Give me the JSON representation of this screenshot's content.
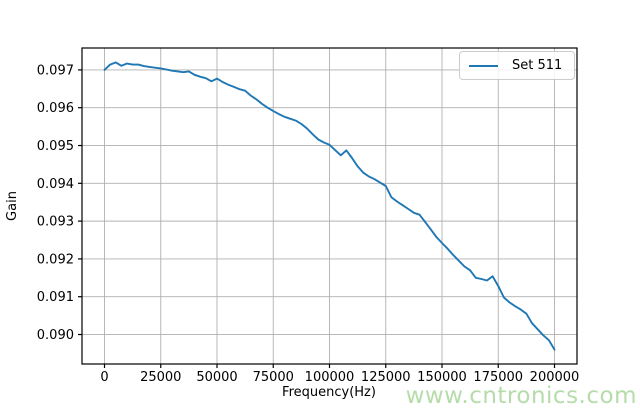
{
  "figure": {
    "background": "#ffffff",
    "watermark": {
      "text": "www.cntronics.com",
      "color": "#b5dcaa"
    }
  },
  "chart_data": {
    "type": "line",
    "title": "",
    "xlabel": "Frequency(Hz)",
    "ylabel": "Gain",
    "grid": true,
    "grid_color": "#b0b0b0",
    "axis_color": "#000000",
    "xlim": [
      -10000,
      210000
    ],
    "ylim": [
      0.08922,
      0.09758
    ],
    "legend_position": "upper right",
    "xticks": {
      "values": [
        0,
        25000,
        50000,
        75000,
        100000,
        125000,
        150000,
        175000,
        200000
      ],
      "labels": [
        "0",
        "25000",
        "50000",
        "75000",
        "100000",
        "125000",
        "150000",
        "175000",
        "200000"
      ]
    },
    "yticks": {
      "values": [
        0.09,
        0.091,
        0.092,
        0.093,
        0.094,
        0.095,
        0.096,
        0.097
      ],
      "labels": [
        "0.090",
        "0.091",
        "0.092",
        "0.093",
        "0.094",
        "0.095",
        "0.096",
        "0.097"
      ]
    },
    "x": [
      0,
      2500,
      5000,
      7500,
      10000,
      12500,
      15000,
      17500,
      20000,
      22500,
      25000,
      27500,
      30000,
      32500,
      35000,
      37500,
      40000,
      42500,
      45000,
      47500,
      50000,
      52500,
      55000,
      57500,
      60000,
      62500,
      65000,
      67500,
      70000,
      72500,
      75000,
      77500,
      80000,
      82500,
      85000,
      87500,
      90000,
      92500,
      95000,
      97500,
      100000,
      102500,
      105000,
      107500,
      110000,
      112500,
      115000,
      117500,
      120000,
      122500,
      125000,
      127500,
      130000,
      132500,
      135000,
      137500,
      140000,
      142500,
      145000,
      147500,
      150000,
      152500,
      155000,
      157500,
      160000,
      162500,
      165000,
      167500,
      170000,
      172500,
      175000,
      177500,
      180000,
      182500,
      185000,
      187500,
      190000,
      192500,
      195000,
      197500,
      200000
    ],
    "series": [
      {
        "name": "Set 511",
        "color": "#1f77b4",
        "values": [
          0.097,
          0.09714,
          0.0972,
          0.09711,
          0.09717,
          0.09714,
          0.09714,
          0.0971,
          0.09708,
          0.09706,
          0.09704,
          0.09701,
          0.09698,
          0.09696,
          0.09694,
          0.09696,
          0.09687,
          0.09682,
          0.09678,
          0.0967,
          0.09677,
          0.09668,
          0.09661,
          0.09655,
          0.09649,
          0.09645,
          0.09632,
          0.09622,
          0.0961,
          0.096,
          0.09591,
          0.09583,
          0.09576,
          0.09571,
          0.09566,
          0.09557,
          0.09545,
          0.0953,
          0.09516,
          0.09508,
          0.09502,
          0.09488,
          0.09474,
          0.09487,
          0.09467,
          0.09445,
          0.09428,
          0.09418,
          0.09411,
          0.09402,
          0.09393,
          0.09363,
          0.09352,
          0.09342,
          0.09332,
          0.09322,
          0.09317,
          0.09298,
          0.09278,
          0.09258,
          0.09242,
          0.09227,
          0.0921,
          0.09195,
          0.0918,
          0.0917,
          0.0915,
          0.09147,
          0.09143,
          0.09154,
          0.09128,
          0.09098,
          0.09085,
          0.09075,
          0.09066,
          0.09055,
          0.0903,
          0.09014,
          0.08998,
          0.08985,
          0.0896
        ]
      }
    ]
  }
}
